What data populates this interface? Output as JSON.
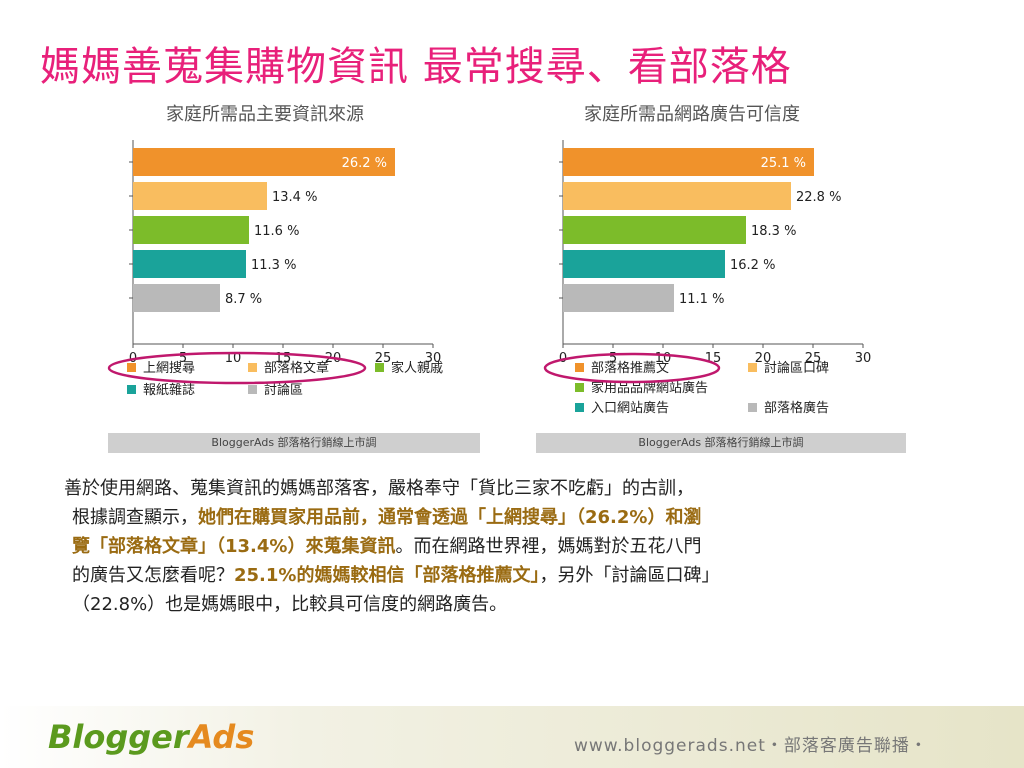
{
  "page": {
    "title": "媽媽善蒐集購物資訊 最常搜尋、看部落格",
    "body": [
      [
        {
          "t": "善於使用網路、蒐集資訊的媽媽部落客，嚴格奉守「貨比三家不吃虧」的古訓，",
          "hl": false
        }
      ],
      [
        {
          "t": "根據調查顯示，",
          "hl": false
        },
        {
          "t": "她們在購買家用品前，通常會透過「上網搜尋」（26.2%）和瀏",
          "hl": true
        }
      ],
      [
        {
          "t": "覽「部落格文章」（13.4%）來蒐集資訊",
          "hl": true
        },
        {
          "t": "。而在網路世界裡，媽媽對於五花八門",
          "hl": false
        }
      ],
      [
        {
          "t": "的廣告又怎麼看呢？",
          "hl": false
        },
        {
          "t": "25.1%的媽媽較相信「部落格推薦文」",
          "hl": true
        },
        {
          "t": "，另外「討論區口碑」",
          "hl": false
        }
      ],
      [
        {
          "t": "（22.8%）也是媽媽眼中，比較具可信度的網路廣告。",
          "hl": false
        }
      ]
    ],
    "footer": {
      "logo_part1": "Blogger",
      "logo_part2": "Ads",
      "url": "www.bloggerads.net・部落客廣告聯播・"
    }
  },
  "chart_data": [
    {
      "type": "bar",
      "orientation": "horizontal",
      "title": "家庭所需品主要資訊來源",
      "categories": [
        "上網搜尋",
        "部落格文章",
        "家人親戚",
        "報紙雜誌",
        "討論區"
      ],
      "values": [
        26.2,
        13.4,
        11.6,
        11.3,
        8.7
      ],
      "value_labels": [
        "26.2 %",
        "13.4 %",
        "11.6 %",
        "11.3 %",
        "8.7 %"
      ],
      "colors": [
        "#f0922b",
        "#f9bd5f",
        "#7cbc2a",
        "#1aa39a",
        "#b9b9b9"
      ],
      "xlim": [
        0,
        30
      ],
      "xticks": [
        0,
        5,
        10,
        15,
        20,
        25,
        30
      ],
      "legend": "bottom",
      "highlighted_legend": "上網搜尋、部落格文章",
      "source": "BloggerAds 部落格行銷線上市調"
    },
    {
      "type": "bar",
      "orientation": "horizontal",
      "title": "家庭所需品網路廣告可信度",
      "categories": [
        "部落格推薦文",
        "討論區口碑",
        "家用品品牌網站廣告",
        "入口網站廣告",
        "部落格廣告"
      ],
      "values": [
        25.1,
        22.8,
        18.3,
        16.2,
        11.1
      ],
      "value_labels": [
        "25.1 %",
        "22.8 %",
        "18.3 %",
        "16.2 %",
        "11.1 %"
      ],
      "colors": [
        "#f0922b",
        "#f9bd5f",
        "#7cbc2a",
        "#1aa39a",
        "#b9b9b9"
      ],
      "xlim": [
        0,
        30
      ],
      "xticks": [
        0,
        5,
        10,
        15,
        20,
        25,
        30
      ],
      "legend": "bottom",
      "highlighted_legend": "部落格推薦文",
      "source": "BloggerAds 部落格行銷線上市調"
    }
  ]
}
